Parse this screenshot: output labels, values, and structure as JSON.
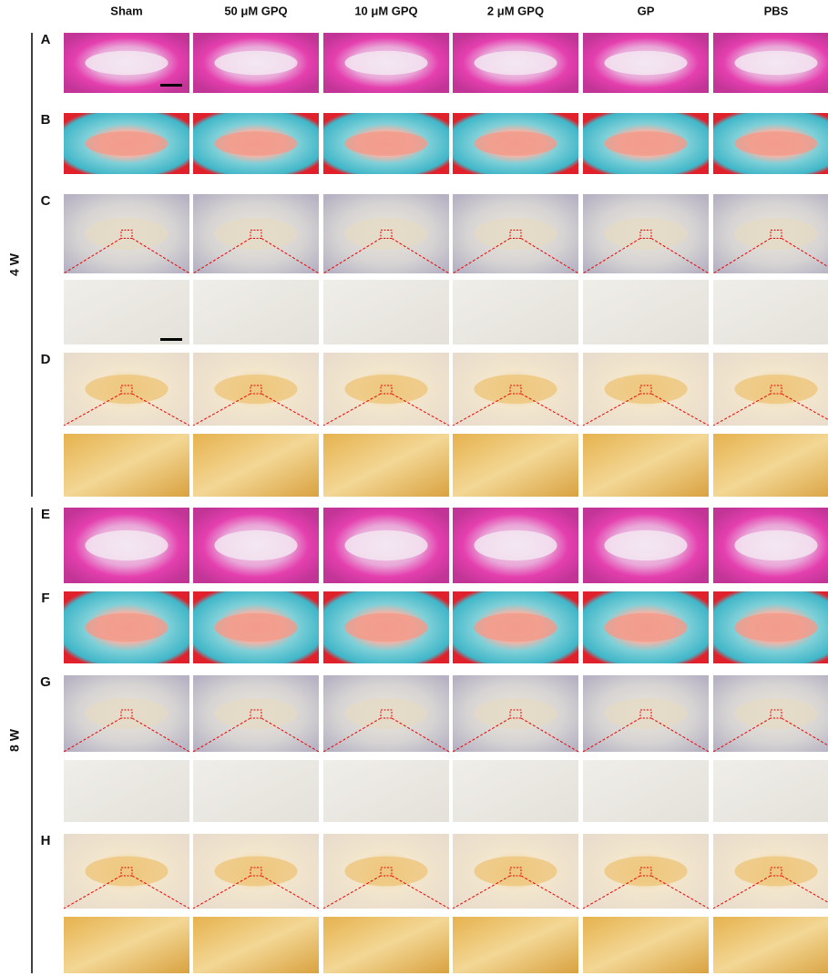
{
  "column_headers": [
    "Sham",
    "50 μM GPQ",
    "10 μM GPQ",
    "2 μM GPQ",
    "GP",
    "PBS"
  ],
  "row_labels": [
    "A",
    "B",
    "C",
    "D",
    "E",
    "F",
    "G",
    "H"
  ],
  "group_labels": [
    "4 W",
    "8 W"
  ]
}
